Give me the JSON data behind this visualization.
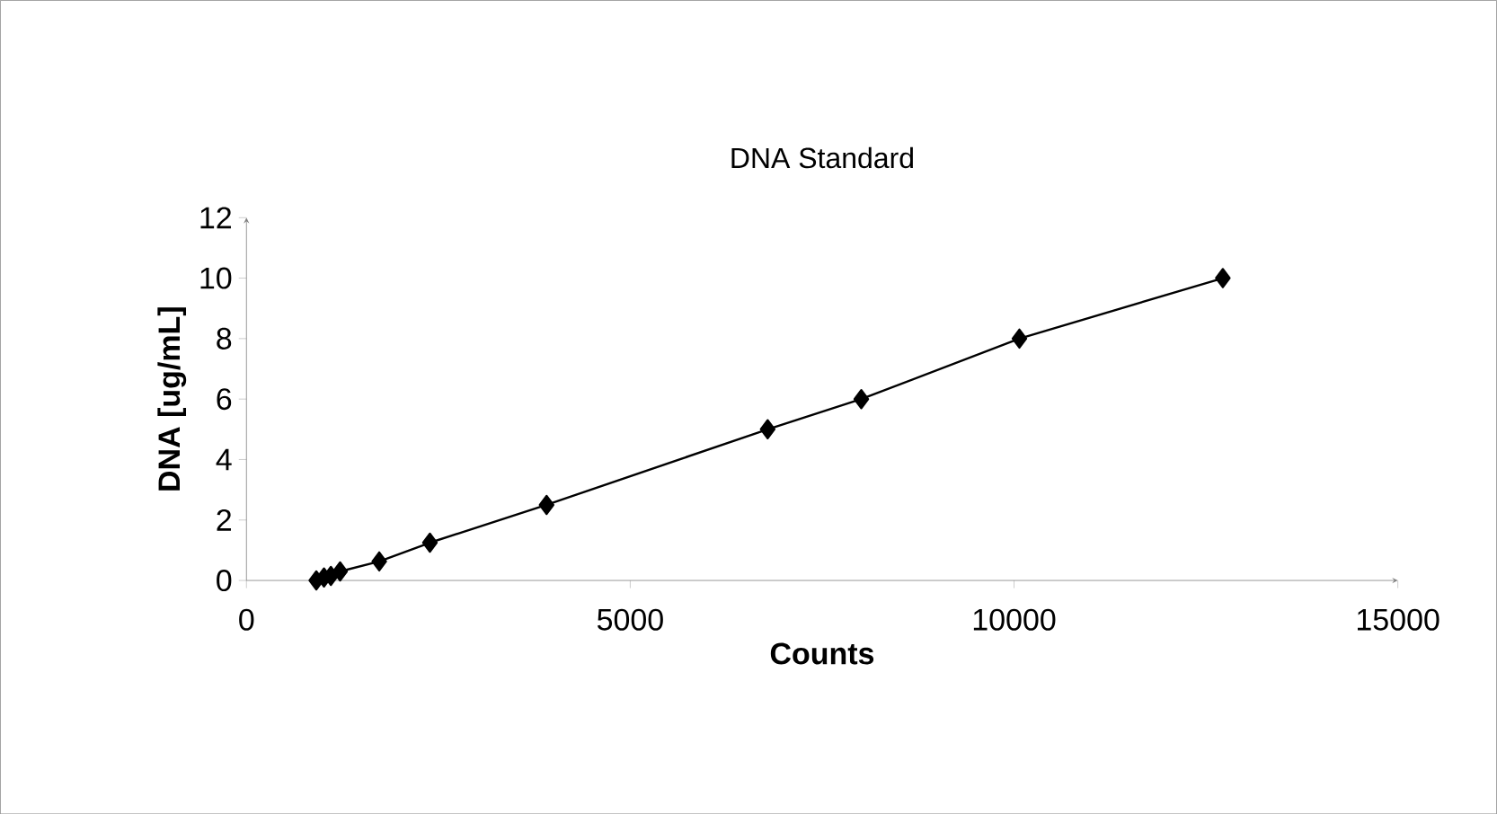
{
  "chart_data": {
    "type": "line",
    "title": "DNA Standard",
    "xlabel": "Counts",
    "ylabel": "DNA [ug/mL]",
    "x": [
      910,
      1010,
      1100,
      1220,
      1730,
      2390,
      3910,
      6790,
      8010,
      10070,
      12720
    ],
    "values": [
      0,
      0.1,
      0.15,
      0.3,
      0.63,
      1.25,
      2.5,
      5,
      6,
      8,
      10
    ],
    "color": "#000000",
    "marker": "diamond",
    "line_style": "solid",
    "xlim": [
      0,
      15000
    ],
    "xticks": [
      0,
      5000,
      10000,
      15000
    ],
    "ylim": [
      0,
      12
    ],
    "yticks": [
      0,
      2,
      4,
      6,
      8,
      10,
      12
    ]
  }
}
